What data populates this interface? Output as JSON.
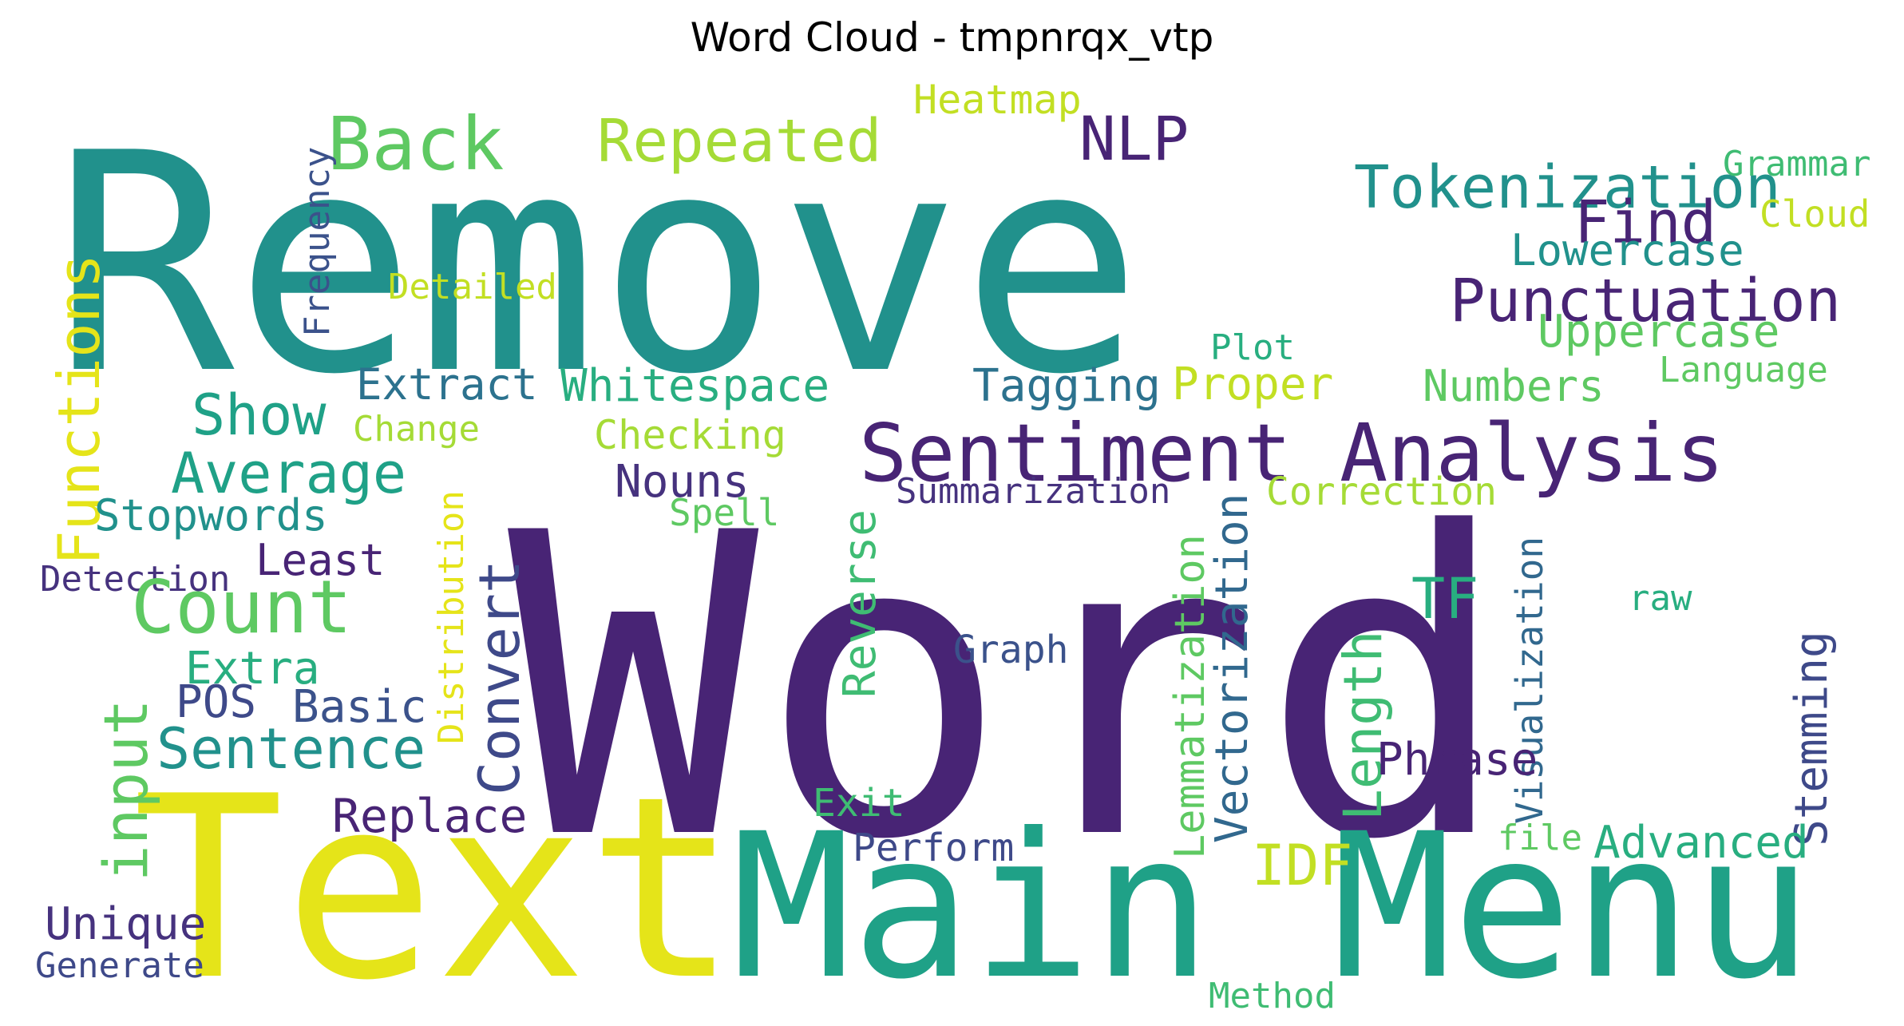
{
  "title": "Word Cloud - tmpnrqx_vtp",
  "colors": {
    "deep_purple": "#482475",
    "purple": "#46327e",
    "indigo": "#3e4989",
    "slate_blue": "#3b528b",
    "steel": "#31688e",
    "blue_teal": "#2c728e",
    "teal": "#21918c",
    "sea_green": "#1fa187",
    "green_teal": "#28ae80",
    "green": "#3fbc73",
    "light_green": "#5ec962",
    "lime": "#7ad151",
    "yellow_green": "#a5db36",
    "yellow_lime": "#c2df23",
    "yellow": "#e5e419"
  },
  "words": [
    {
      "text": "Remove",
      "color": "teal"
    },
    {
      "text": "Word",
      "color": "deep_purple"
    },
    {
      "text": "Text",
      "color": "yellow"
    },
    {
      "text": "Main Menu",
      "color": "sea_green"
    },
    {
      "text": "Sentiment Analysis",
      "color": "deep_purple"
    },
    {
      "text": "Tokenization",
      "color": "teal"
    },
    {
      "text": "Back",
      "color": "light_green"
    },
    {
      "text": "Repeated",
      "color": "yellow_green"
    },
    {
      "text": "Heatmap",
      "color": "yellow_lime"
    },
    {
      "text": "NLP",
      "color": "deep_purple"
    },
    {
      "text": "Grammar",
      "color": "green"
    },
    {
      "text": "Find",
      "color": "deep_purple"
    },
    {
      "text": "Cloud",
      "color": "yellow_lime"
    },
    {
      "text": "Lowercase",
      "color": "teal"
    },
    {
      "text": "Punctuation",
      "color": "deep_purple"
    },
    {
      "text": "Frequency",
      "color": "slate_blue"
    },
    {
      "text": "Detailed",
      "color": "yellow_lime"
    },
    {
      "text": "Functions",
      "color": "yellow"
    },
    {
      "text": "Plot",
      "color": "green_teal"
    },
    {
      "text": "Uppercase",
      "color": "light_green"
    },
    {
      "text": "Language",
      "color": "light_green"
    },
    {
      "text": "Extract",
      "color": "blue_teal"
    },
    {
      "text": "Whitespace",
      "color": "green_teal"
    },
    {
      "text": "Tagging",
      "color": "blue_teal"
    },
    {
      "text": "Proper",
      "color": "yellow_lime"
    },
    {
      "text": "Numbers",
      "color": "light_green"
    },
    {
      "text": "Show",
      "color": "sea_green"
    },
    {
      "text": "Change",
      "color": "yellow_green"
    },
    {
      "text": "Checking",
      "color": "yellow_green"
    },
    {
      "text": "Average",
      "color": "sea_green"
    },
    {
      "text": "Nouns",
      "color": "purple"
    },
    {
      "text": "Summarization",
      "color": "purple"
    },
    {
      "text": "Correction",
      "color": "yellow_green"
    },
    {
      "text": "Stopwords",
      "color": "teal"
    },
    {
      "text": "Spell",
      "color": "light_green"
    },
    {
      "text": "Least",
      "color": "deep_purple"
    },
    {
      "text": "Detection",
      "color": "purple"
    },
    {
      "text": "Distribution",
      "color": "yellow"
    },
    {
      "text": "Convert",
      "color": "indigo"
    },
    {
      "text": "Reverse",
      "color": "green"
    },
    {
      "text": "Lemmatization",
      "color": "light_green"
    },
    {
      "text": "Vectorization",
      "color": "steel"
    },
    {
      "text": "Visualization",
      "color": "steel"
    },
    {
      "text": "TF",
      "color": "green_teal"
    },
    {
      "text": "raw",
      "color": "green_teal"
    },
    {
      "text": "Count",
      "color": "light_green"
    },
    {
      "text": "Graph",
      "color": "slate_blue"
    },
    {
      "text": "Length",
      "color": "green"
    },
    {
      "text": "Stemming",
      "color": "indigo"
    },
    {
      "text": "Extra",
      "color": "green_teal"
    },
    {
      "text": "input",
      "color": "light_green"
    },
    {
      "text": "POS",
      "color": "indigo"
    },
    {
      "text": "Basic",
      "color": "slate_blue"
    },
    {
      "text": "Sentence",
      "color": "teal"
    },
    {
      "text": "Phrase",
      "color": "deep_purple"
    },
    {
      "text": "Exit",
      "color": "green"
    },
    {
      "text": "Replace",
      "color": "deep_purple"
    },
    {
      "text": "file",
      "color": "light_green"
    },
    {
      "text": "Advanced",
      "color": "green_teal"
    },
    {
      "text": "Perform",
      "color": "indigo"
    },
    {
      "text": "IDF",
      "color": "yellow_lime"
    },
    {
      "text": "Unique",
      "color": "purple"
    },
    {
      "text": "Generate",
      "color": "indigo"
    },
    {
      "text": "Method",
      "color": "green"
    }
  ]
}
